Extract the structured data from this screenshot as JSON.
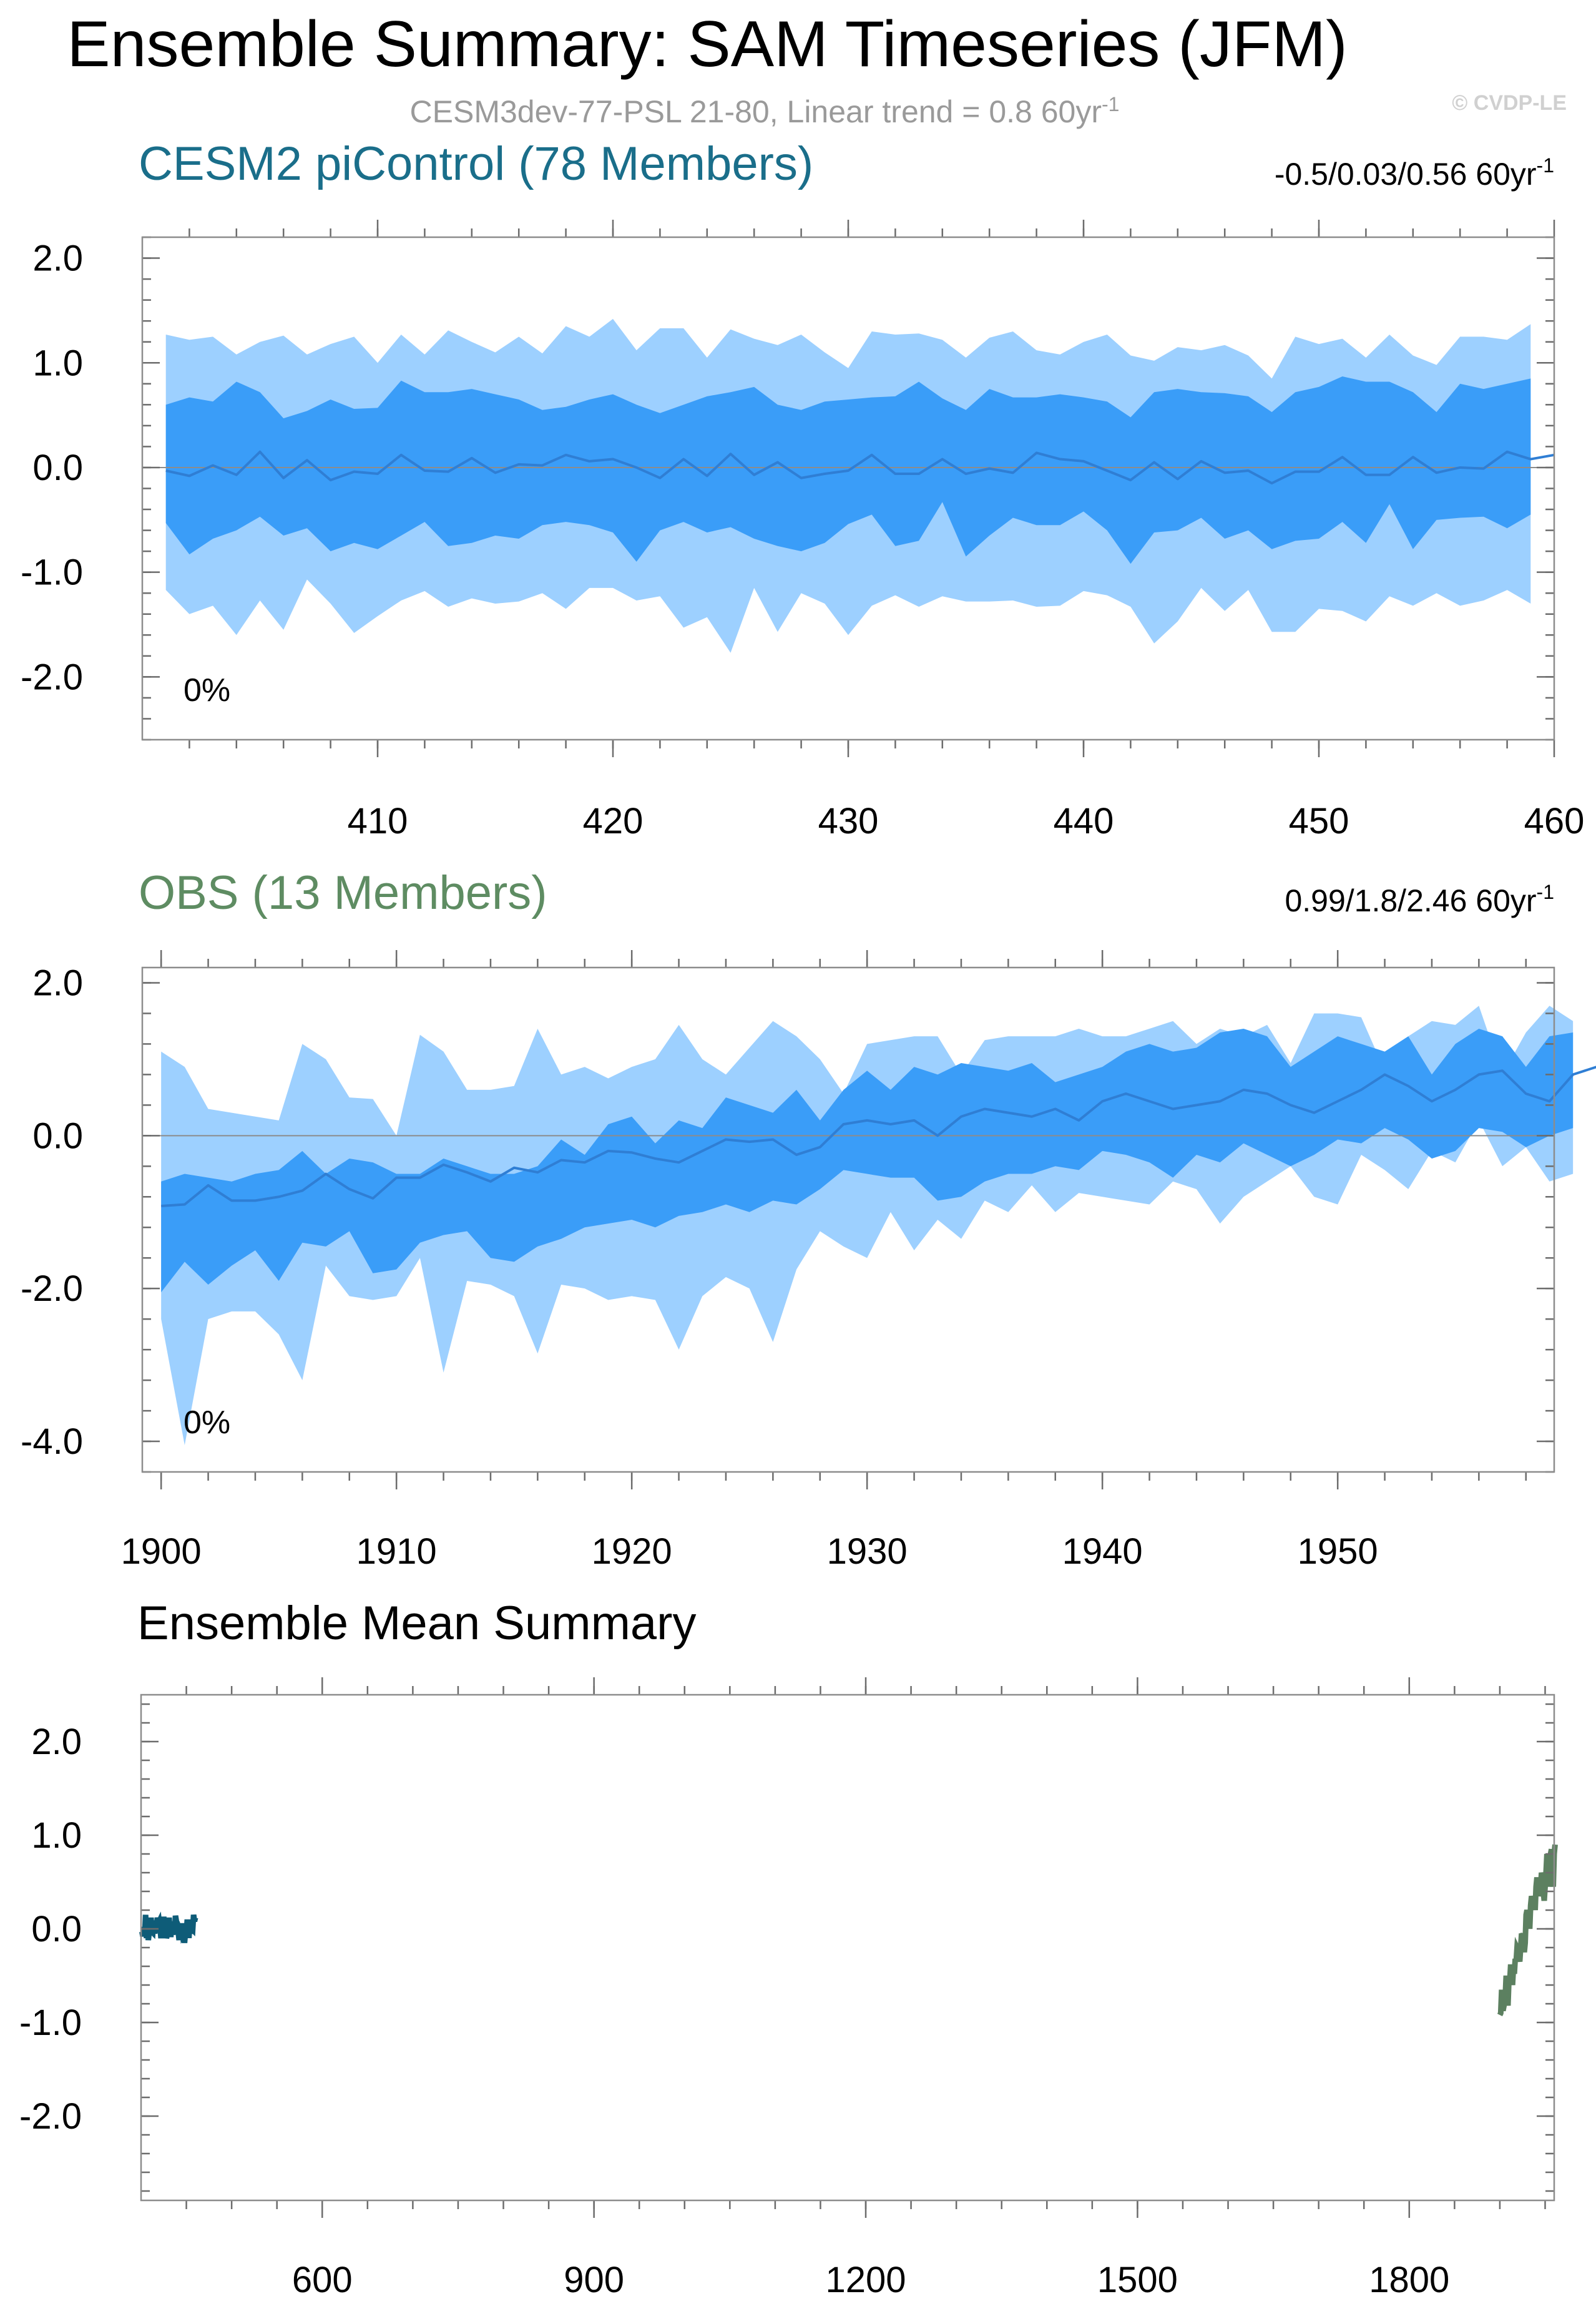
{
  "title": "Ensemble Summary: SAM Timeseries (JFM)",
  "subtitle": "CESM3dev-77-PSL 21-80, Linear trend = 0.8 60yr",
  "subtitle_sup": "-1",
  "copyright": "© CVDP-LE",
  "colors": {
    "band_outer": "#9dd0ff",
    "band_inner": "#3a9df8",
    "mean_line": "#2f7ed4",
    "cesm_title": "#1a6e8a",
    "obs_title": "#5e8c62",
    "cesm_summary": "#0e5c78",
    "obs_summary": "#5c8060"
  },
  "chart_data": [
    {
      "type": "area",
      "title": "CESM2 piControl (78 Members)",
      "stats_text": "-0.5/0.03/0.56 60yr",
      "stats_sup": "-1",
      "percent_label": "0%",
      "x_start": 401,
      "xlim": [
        400,
        460
      ],
      "ylim": [
        -2.6,
        2.2
      ],
      "xticks": [
        410,
        420,
        430,
        440,
        450,
        460
      ],
      "yticks": [
        2.0,
        1.0,
        0.0,
        -1.0,
        -2.0
      ],
      "ytick_labels": [
        "2.0",
        "1.0",
        "0.0",
        "-1.0",
        "-2.0"
      ],
      "upper_outer": [
        1.27,
        1.22,
        1.25,
        1.08,
        1.2,
        1.26,
        1.08,
        1.18,
        1.25,
        1.0,
        1.27,
        1.08,
        1.31,
        1.2,
        1.1,
        1.25,
        1.09,
        1.35,
        1.25,
        1.42,
        1.12,
        1.33,
        1.33,
        1.05,
        1.32,
        1.23,
        1.17,
        1.27,
        1.1,
        0.95,
        1.3,
        1.27,
        1.28,
        1.22,
        1.05,
        1.24,
        1.3,
        1.12,
        1.08,
        1.2,
        1.27,
        1.07,
        1.02,
        1.15,
        1.12,
        1.17,
        1.07,
        0.85,
        1.25,
        1.18,
        1.23,
        1.05,
        1.27,
        1.07,
        0.98,
        1.25,
        1.25,
        1.22,
        1.37
      ],
      "upper_inner": [
        0.6,
        0.67,
        0.63,
        0.82,
        0.72,
        0.47,
        0.54,
        0.65,
        0.56,
        0.57,
        0.83,
        0.72,
        0.72,
        0.75,
        0.7,
        0.65,
        0.55,
        0.58,
        0.65,
        0.7,
        0.6,
        0.52,
        0.6,
        0.68,
        0.72,
        0.77,
        0.6,
        0.55,
        0.63,
        0.65,
        0.67,
        0.68,
        0.82,
        0.66,
        0.55,
        0.75,
        0.67,
        0.67,
        0.7,
        0.67,
        0.63,
        0.48,
        0.72,
        0.75,
        0.72,
        0.71,
        0.68,
        0.53,
        0.72,
        0.77,
        0.87,
        0.82,
        0.82,
        0.72,
        0.53,
        0.8,
        0.75,
        0.8,
        0.85
      ],
      "mean": [
        -0.03,
        -0.08,
        0.02,
        -0.07,
        0.15,
        -0.1,
        0.07,
        -0.12,
        -0.04,
        -0.06,
        0.12,
        -0.03,
        -0.04,
        0.09,
        -0.05,
        0.03,
        0.02,
        0.12,
        0.06,
        0.08,
        0.0,
        -0.1,
        0.08,
        -0.08,
        0.13,
        -0.07,
        0.05,
        -0.1,
        -0.06,
        -0.03,
        0.12,
        -0.06,
        -0.06,
        0.08,
        -0.06,
        -0.01,
        -0.05,
        0.14,
        0.08,
        0.06,
        -0.03,
        -0.12,
        0.05,
        -0.11,
        0.06,
        -0.05,
        -0.03,
        -0.15,
        -0.04,
        -0.04,
        0.1,
        -0.07,
        -0.07,
        0.1,
        -0.05,
        0.0,
        -0.01,
        0.15,
        0.08,
        0.12
      ],
      "lower_inner": [
        -0.53,
        -0.83,
        -0.68,
        -0.6,
        -0.47,
        -0.65,
        -0.58,
        -0.8,
        -0.72,
        -0.78,
        -0.65,
        -0.52,
        -0.75,
        -0.72,
        -0.65,
        -0.68,
        -0.55,
        -0.52,
        -0.55,
        -0.62,
        -0.9,
        -0.6,
        -0.52,
        -0.62,
        -0.57,
        -0.68,
        -0.75,
        -0.8,
        -0.72,
        -0.54,
        -0.45,
        -0.75,
        -0.7,
        -0.33,
        -0.85,
        -0.65,
        -0.48,
        -0.55,
        -0.55,
        -0.42,
        -0.6,
        -0.92,
        -0.62,
        -0.6,
        -0.48,
        -0.68,
        -0.6,
        -0.78,
        -0.7,
        -0.68,
        -0.52,
        -0.72,
        -0.35,
        -0.78,
        -0.5,
        -0.48,
        -0.47,
        -0.58,
        -0.45
      ],
      "lower_outer": [
        -1.17,
        -1.4,
        -1.32,
        -1.6,
        -1.27,
        -1.55,
        -1.07,
        -1.3,
        -1.58,
        -1.42,
        -1.27,
        -1.18,
        -1.33,
        -1.25,
        -1.3,
        -1.28,
        -1.2,
        -1.35,
        -1.15,
        -1.15,
        -1.27,
        -1.23,
        -1.53,
        -1.43,
        -1.77,
        -1.15,
        -1.57,
        -1.2,
        -1.3,
        -1.6,
        -1.32,
        -1.22,
        -1.33,
        -1.23,
        -1.28,
        -1.28,
        -1.27,
        -1.33,
        -1.32,
        -1.18,
        -1.22,
        -1.33,
        -1.68,
        -1.47,
        -1.15,
        -1.37,
        -1.17,
        -1.57,
        -1.57,
        -1.35,
        -1.37,
        -1.47,
        -1.23,
        -1.32,
        -1.2,
        -1.32,
        -1.27,
        -1.17,
        -1.3
      ]
    },
    {
      "type": "area",
      "title": "OBS (13 Members)",
      "stats_text": "0.99/1.8/2.46 60yr",
      "stats_sup": "-1",
      "percent_label": "0%",
      "x_start": 1900,
      "xlim": [
        1899.2,
        1959.2
      ],
      "ylim": [
        -4.4,
        2.2
      ],
      "xticks": [
        1900,
        1910,
        1920,
        1930,
        1940,
        1950
      ],
      "yticks": [
        2.0,
        0.0,
        -2.0,
        -4.0
      ],
      "ytick_labels": [
        "2.0",
        "0.0",
        "-2.0",
        "-4.0"
      ],
      "upper_outer": [
        1.1,
        0.9,
        0.35,
        0.3,
        0.25,
        0.2,
        1.2,
        1.0,
        0.5,
        0.48,
        0.0,
        1.32,
        1.1,
        0.6,
        0.6,
        0.65,
        1.4,
        0.8,
        0.9,
        0.75,
        0.9,
        1.0,
        1.45,
        1.0,
        0.8,
        1.15,
        1.5,
        1.3,
        1.0,
        0.55,
        1.2,
        1.25,
        1.3,
        1.3,
        0.8,
        1.25,
        1.3,
        1.3,
        1.3,
        1.4,
        1.3,
        1.3,
        1.4,
        1.5,
        1.2,
        1.4,
        1.3,
        1.45,
        0.95,
        1.6,
        1.6,
        1.55,
        0.85,
        1.3,
        1.5,
        1.45,
        1.7,
        0.8,
        1.35,
        1.7,
        1.5
      ],
      "upper_inner": [
        -0.6,
        -0.5,
        -0.55,
        -0.6,
        -0.5,
        -0.45,
        -0.2,
        -0.5,
        -0.3,
        -0.35,
        -0.5,
        -0.5,
        -0.3,
        -0.4,
        -0.5,
        -0.5,
        -0.4,
        -0.05,
        -0.25,
        0.15,
        0.25,
        -0.1,
        0.2,
        0.1,
        0.5,
        0.4,
        0.3,
        0.6,
        0.2,
        0.6,
        0.85,
        0.6,
        0.9,
        0.8,
        0.95,
        0.9,
        0.85,
        0.95,
        0.7,
        0.8,
        0.9,
        1.1,
        1.2,
        1.1,
        1.15,
        1.35,
        1.4,
        1.3,
        0.9,
        1.1,
        1.3,
        1.2,
        1.1,
        1.3,
        0.8,
        1.2,
        1.4,
        1.3,
        0.9,
        1.3,
        1.35
      ],
      "mean": [
        -0.92,
        -0.9,
        -0.65,
        -0.85,
        -0.85,
        -0.8,
        -0.72,
        -0.5,
        -0.7,
        -0.82,
        -0.55,
        -0.55,
        -0.38,
        -0.48,
        -0.6,
        -0.42,
        -0.48,
        -0.32,
        -0.35,
        -0.2,
        -0.22,
        -0.3,
        -0.35,
        -0.2,
        -0.05,
        -0.08,
        -0.05,
        -0.25,
        -0.15,
        0.15,
        0.2,
        0.15,
        0.2,
        0.0,
        0.25,
        0.35,
        0.3,
        0.25,
        0.35,
        0.2,
        0.45,
        0.55,
        0.45,
        0.35,
        0.4,
        0.45,
        0.6,
        0.55,
        0.4,
        0.3,
        0.45,
        0.6,
        0.8,
        0.65,
        0.45,
        0.6,
        0.8,
        0.85,
        0.55,
        0.45,
        0.8,
        0.9
      ],
      "lower_inner": [
        -2.05,
        -1.65,
        -1.95,
        -1.7,
        -1.5,
        -1.9,
        -1.4,
        -1.45,
        -1.25,
        -1.8,
        -1.75,
        -1.4,
        -1.3,
        -1.25,
        -1.6,
        -1.65,
        -1.45,
        -1.35,
        -1.2,
        -1.15,
        -1.1,
        -1.2,
        -1.05,
        -1.0,
        -0.9,
        -1.0,
        -0.85,
        -0.9,
        -0.7,
        -0.45,
        -0.5,
        -0.55,
        -0.55,
        -0.85,
        -0.8,
        -0.6,
        -0.5,
        -0.5,
        -0.4,
        -0.45,
        -0.2,
        -0.25,
        -0.35,
        -0.55,
        -0.25,
        -0.35,
        -0.1,
        -0.25,
        -0.4,
        -0.25,
        -0.05,
        -0.1,
        0.1,
        -0.05,
        -0.3,
        -0.2,
        0.1,
        0.05,
        -0.15,
        0.0,
        0.1,
        0.35
      ],
      "lower_outer": [
        -2.4,
        -4.05,
        -2.4,
        -2.3,
        -2.3,
        -2.6,
        -3.2,
        -1.7,
        -2.1,
        -2.15,
        -2.1,
        -1.6,
        -3.1,
        -1.9,
        -1.95,
        -2.1,
        -2.85,
        -1.95,
        -2.0,
        -2.15,
        -2.1,
        -2.15,
        -2.8,
        -2.1,
        -1.85,
        -2.0,
        -2.7,
        -1.75,
        -1.25,
        -1.45,
        -1.6,
        -1.0,
        -1.5,
        -1.1,
        -1.35,
        -0.85,
        -1.0,
        -0.65,
        -1.0,
        -0.75,
        -0.8,
        -0.85,
        -0.9,
        -0.6,
        -0.7,
        -1.15,
        -0.8,
        -0.6,
        -0.4,
        -0.8,
        -0.9,
        -0.25,
        -0.45,
        -0.7,
        -0.2,
        -0.35,
        0.2,
        -0.4,
        -0.15,
        -0.6,
        -0.5,
        -0.1
      ]
    },
    {
      "type": "line",
      "title": "Ensemble Mean Summary",
      "xlim": [
        400,
        1960
      ],
      "ylim": [
        -2.9,
        2.5
      ],
      "xticks": [
        600,
        900,
        1200,
        1500,
        1800
      ],
      "yticks": [
        2.0,
        1.0,
        0.0,
        -1.0,
        -2.0
      ],
      "ytick_labels": [
        "2.0",
        "1.0",
        "0.0",
        "-1.0",
        "-2.0"
      ],
      "series": [
        {
          "name": "CESM2 piControl (78 Members)",
          "x_start": 401,
          "color_key": "cesm_summary"
        },
        {
          "name": "OBS (13 Members)",
          "x_start": 1900,
          "color_key": "obs_summary"
        }
      ]
    }
  ]
}
